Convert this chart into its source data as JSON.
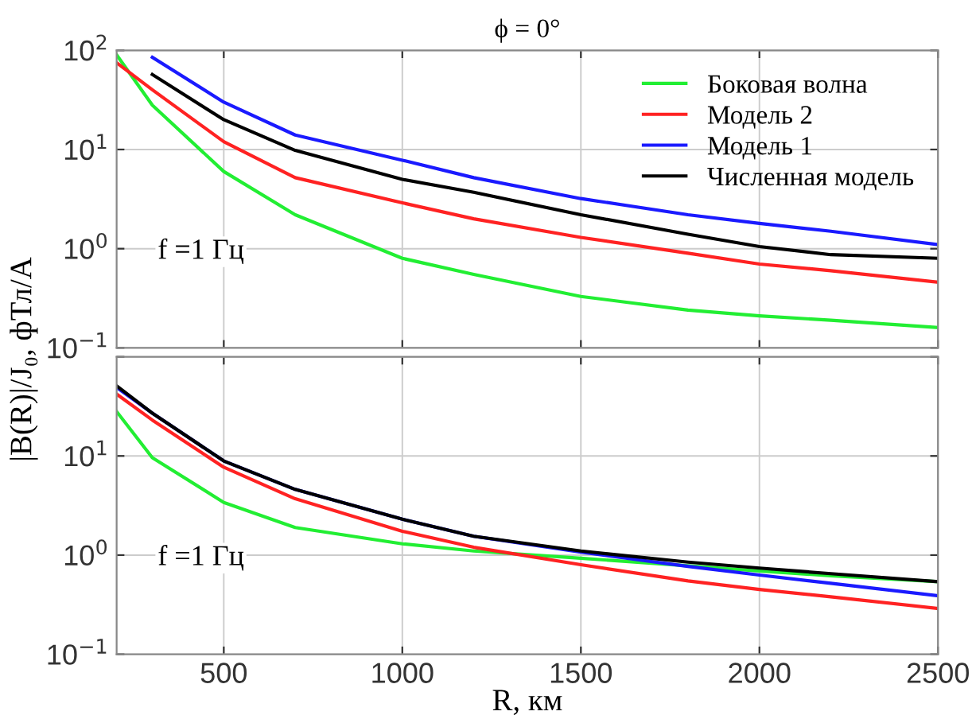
{
  "chart_data": [
    {
      "type": "line",
      "title": "ϕ = 0°",
      "ylabel": "|B(R)|/J₀, фТл/А",
      "annotations": [
        "f =1 Гц"
      ],
      "x": [
        200,
        300,
        500,
        700,
        1000,
        1200,
        1500,
        1800,
        2000,
        2200,
        2500
      ],
      "xlim": [
        200,
        2500
      ],
      "xticks": [
        500,
        1000,
        1500,
        2000,
        2500
      ],
      "ylim": [
        0.1,
        100
      ],
      "yticks": [
        {
          "value": 0.1,
          "label": "10$^{−1}$"
        },
        {
          "value": 1,
          "label": "10$^{0}$"
        },
        {
          "value": 10,
          "label": "10$^{1}$"
        },
        {
          "value": 100,
          "label": "10$^{2}$"
        }
      ],
      "log": true,
      "grid": true,
      "legend": "top right",
      "tick_labels": "y",
      "series": [
        {
          "name": "Боковая волна",
          "color": "#22ee33",
          "values": [
            90,
            28,
            6,
            2.2,
            0.8,
            0.55,
            0.33,
            0.24,
            0.21,
            0.19,
            0.16
          ]
        },
        {
          "name": "Модель 2",
          "color": "#ff2222",
          "values": [
            75,
            40,
            12,
            5.2,
            2.9,
            2.0,
            1.3,
            0.9,
            0.7,
            0.6,
            0.46
          ]
        },
        {
          "name": "Модель 1",
          "color": "#1a1aff",
          "values": [
            null,
            85,
            30,
            14,
            7.8,
            5.2,
            3.2,
            2.2,
            1.8,
            1.5,
            1.1
          ]
        },
        {
          "name": "Численная модель",
          "color": "#000000",
          "values": [
            null,
            57,
            20,
            9.8,
            5,
            3.7,
            2.2,
            1.4,
            1.05,
            0.87,
            0.8
          ]
        }
      ]
    },
    {
      "type": "line",
      "xlabel": "R, км",
      "annotations": [
        "f =1 Гц"
      ],
      "x": [
        200,
        300,
        500,
        700,
        1000,
        1200,
        1500,
        1800,
        2000,
        2200,
        2500
      ],
      "xlim": [
        200,
        2500
      ],
      "xticks": [
        500,
        1000,
        1500,
        2000,
        2500
      ],
      "ylim": [
        0.1,
        100
      ],
      "yticks": [
        {
          "value": 0.1,
          "label": "10$^{−1}$"
        },
        {
          "value": 1,
          "label": "10$^{0}$"
        },
        {
          "value": 10,
          "label": "10$^{1}$"
        },
        {
          "value": 100,
          "label": null
        }
      ],
      "log": true,
      "grid": true,
      "series": [
        {
          "color": "#22ee33",
          "values": [
            28,
            9.6,
            3.4,
            1.9,
            1.3,
            1.1,
            0.93,
            0.78,
            0.69,
            0.62,
            0.54
          ]
        },
        {
          "color": "#ff2222",
          "values": [
            42,
            23,
            7.7,
            3.7,
            1.74,
            1.2,
            0.8,
            0.55,
            0.45,
            0.38,
            0.29
          ]
        },
        {
          "color": "#1a1aff",
          "values": [
            49,
            27,
            8.9,
            4.6,
            2.3,
            1.55,
            1.07,
            0.77,
            0.63,
            0.52,
            0.39
          ]
        },
        {
          "color": "#000000",
          "values": [
            51,
            27,
            8.9,
            4.6,
            2.3,
            1.55,
            1.1,
            0.85,
            0.74,
            0.65,
            0.54
          ]
        }
      ]
    }
  ]
}
